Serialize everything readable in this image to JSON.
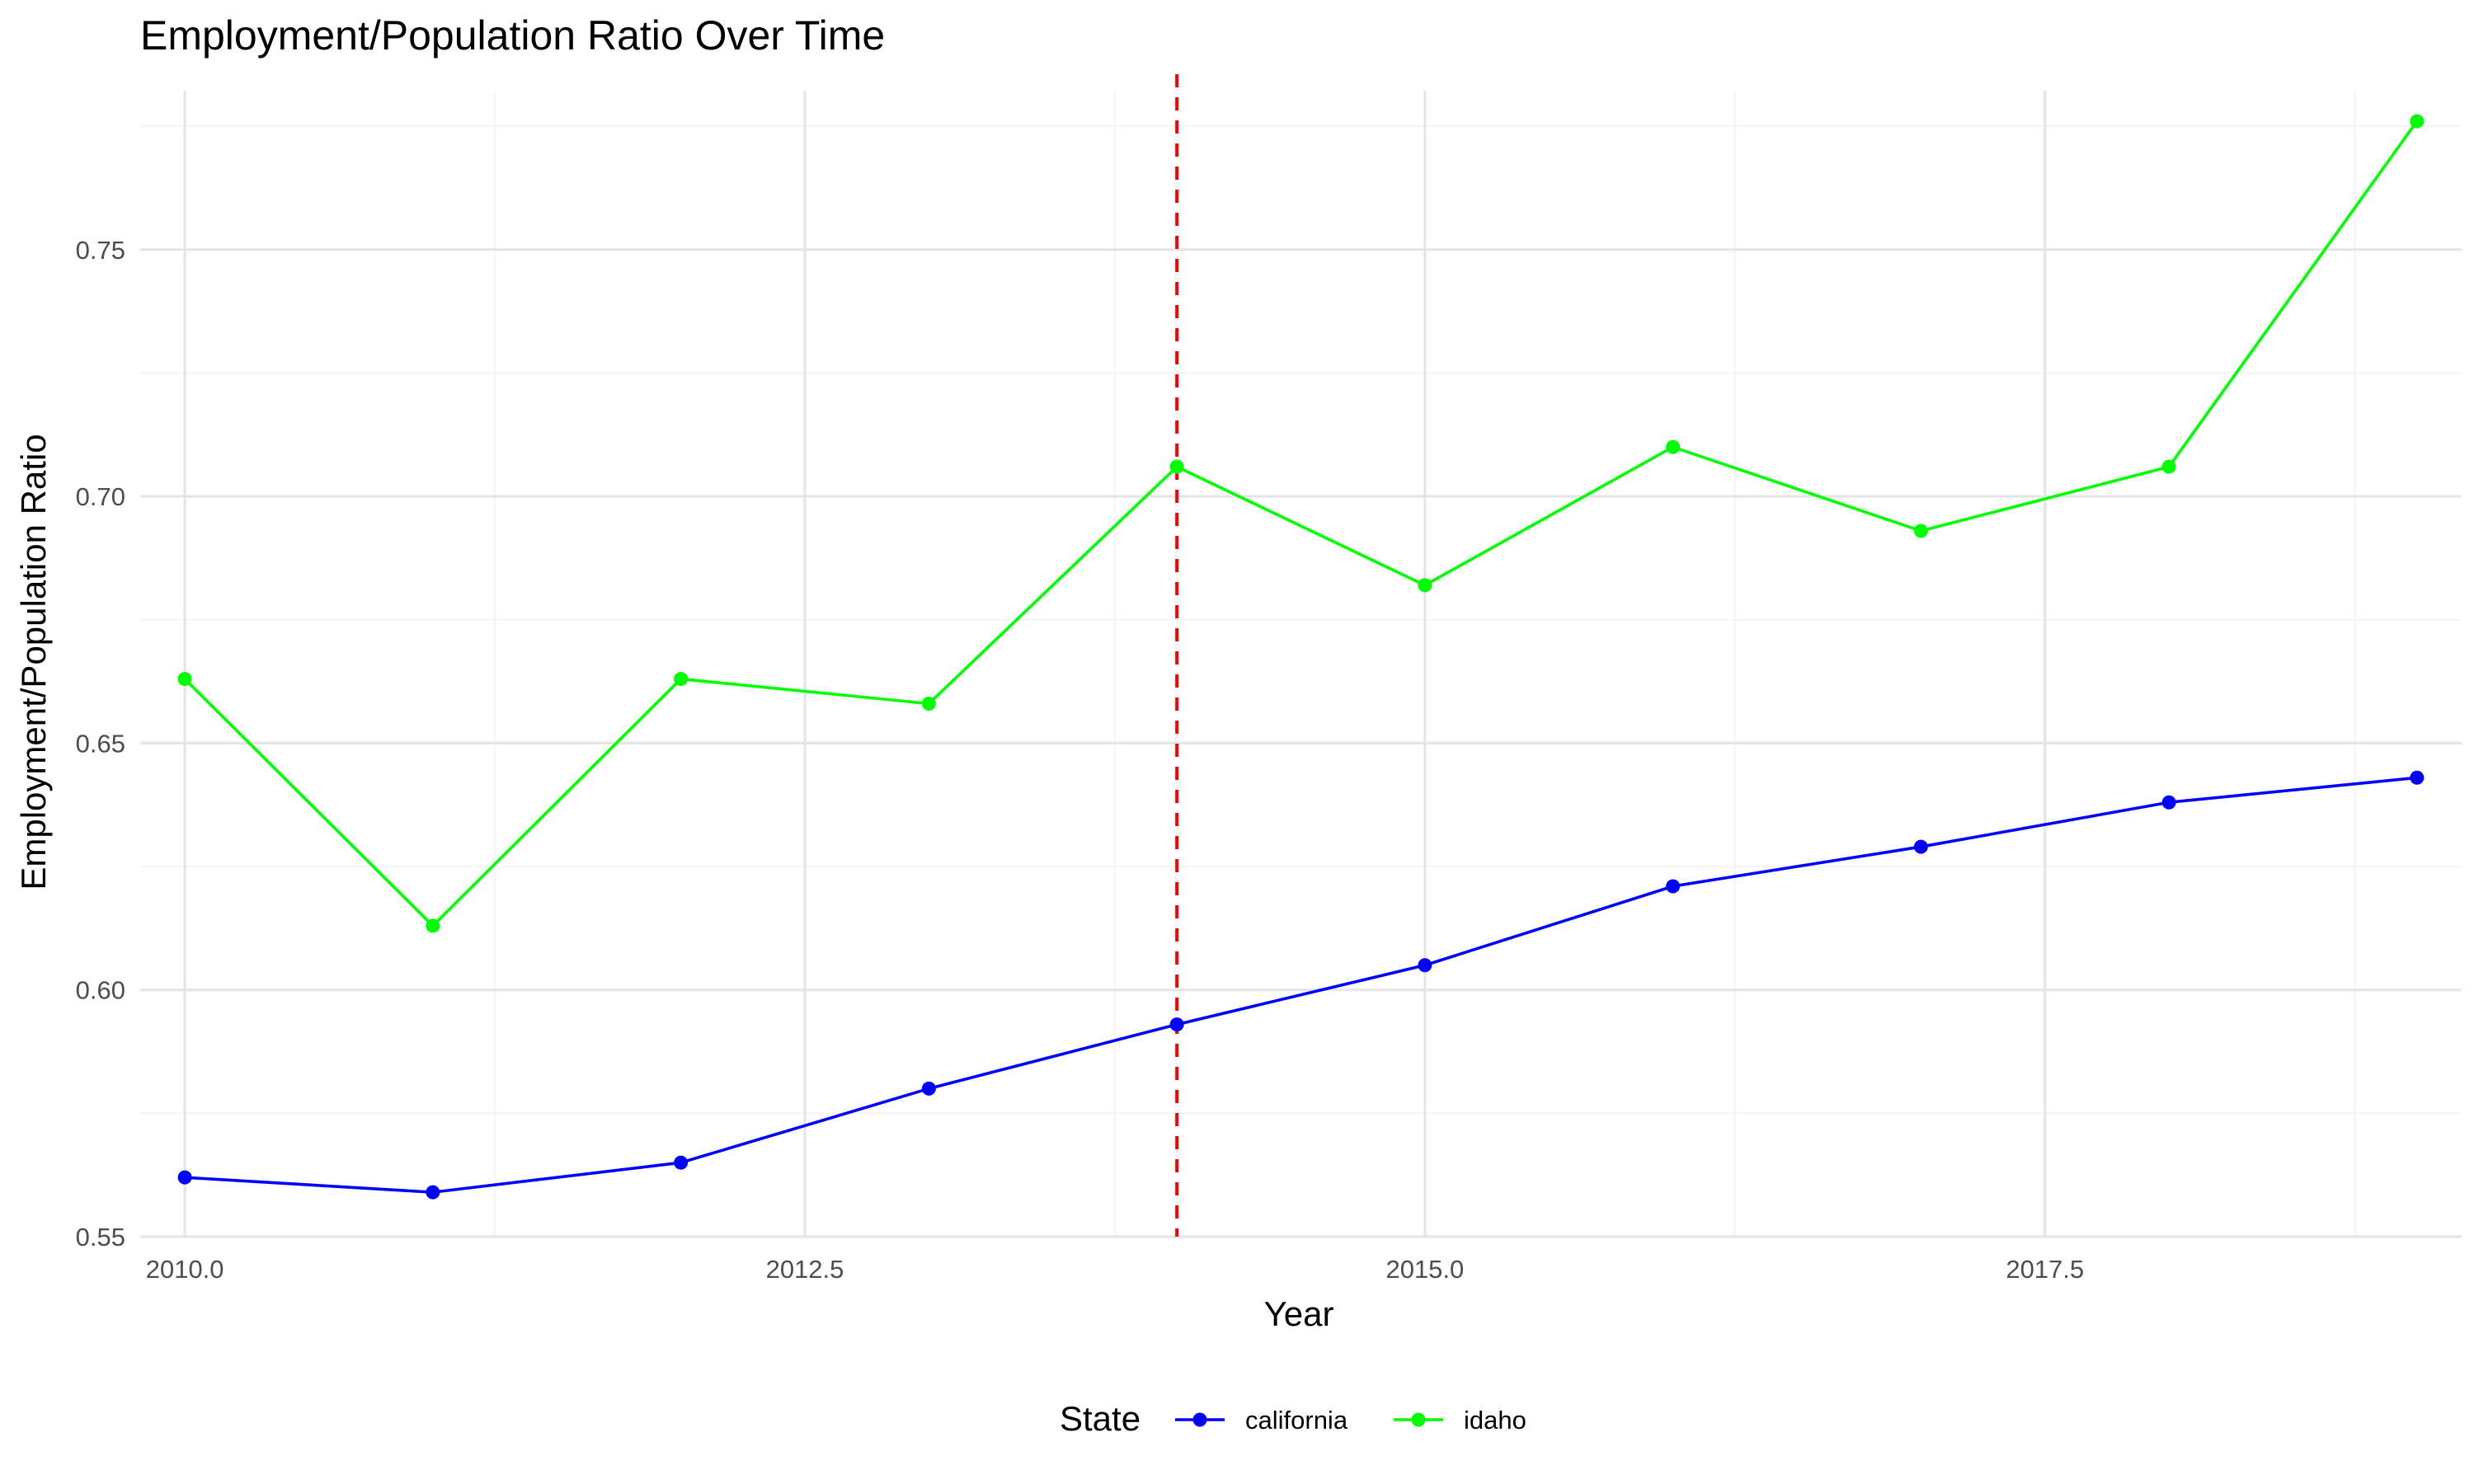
{
  "chart_data": {
    "type": "line",
    "title": "Employment/Population Ratio Over Time",
    "xlabel": "Year",
    "ylabel": "Employment/Population Ratio",
    "xlim": [
      2009.82,
      2019.18
    ],
    "ylim": [
      0.55,
      0.7822
    ],
    "x_ticks": [
      2010.0,
      2012.5,
      2015.0,
      2017.5
    ],
    "x_tick_labels": [
      "2010.0",
      "2012.5",
      "2015.0",
      "2017.5"
    ],
    "y_ticks": [
      0.55,
      0.6,
      0.65,
      0.7,
      0.75
    ],
    "y_tick_labels": [
      "0.55",
      "0.60",
      "0.65",
      "0.70",
      "0.75"
    ],
    "grid": true,
    "legend_position": "bottom",
    "legend_title": "State",
    "reference_line": {
      "orientation": "vertical",
      "x": 2014,
      "color": "#ff0000",
      "style": "dashed"
    },
    "x": [
      2010,
      2011,
      2012,
      2013,
      2014,
      2015,
      2016,
      2017,
      2018,
      2019
    ],
    "series": [
      {
        "name": "california",
        "color": "#0000ff",
        "values": [
          0.562,
          0.559,
          0.565,
          0.58,
          0.593,
          0.605,
          0.621,
          0.629,
          0.638,
          0.643
        ]
      },
      {
        "name": "idaho",
        "color": "#00ff00",
        "values": [
          0.663,
          0.613,
          0.663,
          0.658,
          0.706,
          0.682,
          0.71,
          0.693,
          0.706,
          0.776
        ]
      }
    ]
  }
}
